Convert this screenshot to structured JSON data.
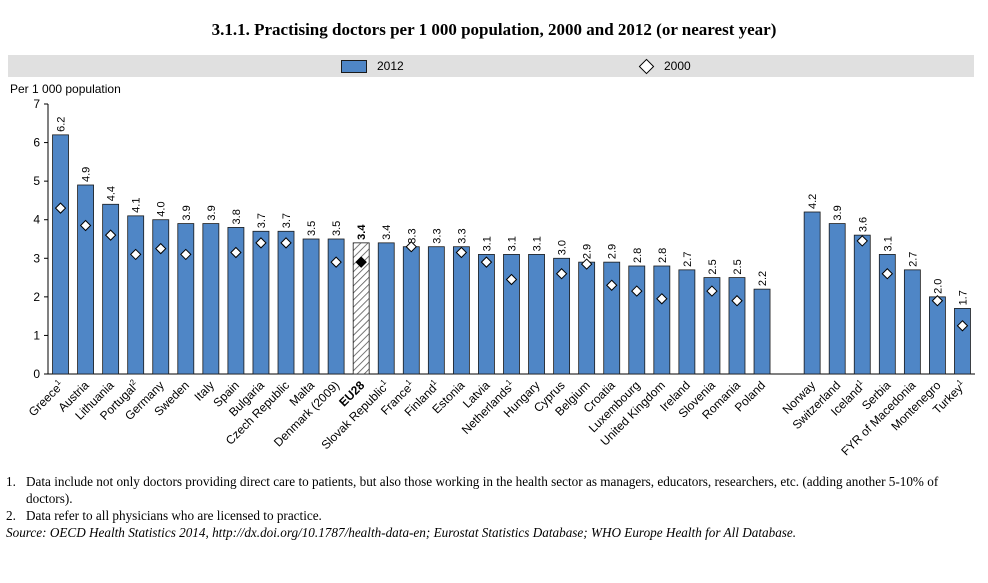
{
  "title": "3.1.1. Practising doctors per 1 000 population, 2000 and 2012 (or nearest year)",
  "legend": {
    "series_2012": "2012",
    "series_2000": "2000"
  },
  "chart_data": {
    "type": "bar",
    "title": "3.1.1. Practising doctors per 1 000 population, 2000 and 2012 (or nearest year)",
    "ylabel": "Per 1 000 population",
    "xlabel": "",
    "ylim": [
      0,
      7
    ],
    "yticks": [
      "0",
      "1",
      "2",
      "3",
      "4",
      "5",
      "6",
      "7"
    ],
    "highlight_category": "EU28",
    "legend_position": "top",
    "categories": [
      {
        "label": "Greece",
        "sup": "1",
        "v2012": 6.2,
        "v2000": 4.3
      },
      {
        "label": "Austria",
        "sup": "",
        "v2012": 4.9,
        "v2000": 3.85
      },
      {
        "label": "Lithuania",
        "sup": "",
        "v2012": 4.4,
        "v2000": 3.6
      },
      {
        "label": "Portugal",
        "sup": "2",
        "v2012": 4.1,
        "v2000": 3.1
      },
      {
        "label": "Germany",
        "sup": "",
        "v2012": 4.0,
        "v2000": 3.25
      },
      {
        "label": "Sweden",
        "sup": "",
        "v2012": 3.9,
        "v2000": 3.1
      },
      {
        "label": "Italy",
        "sup": "",
        "v2012": 3.9,
        "v2000": null
      },
      {
        "label": "Spain",
        "sup": "",
        "v2012": 3.8,
        "v2000": 3.15
      },
      {
        "label": "Bulgaria",
        "sup": "",
        "v2012": 3.7,
        "v2000": 3.4
      },
      {
        "label": "Czech Republic",
        "sup": "",
        "v2012": 3.7,
        "v2000": 3.4
      },
      {
        "label": "Malta",
        "sup": "",
        "v2012": 3.5,
        "v2000": null
      },
      {
        "label": "Denmark (2009)",
        "sup": "",
        "v2012": 3.5,
        "v2000": 2.9
      },
      {
        "label": "EU28",
        "sup": "",
        "v2012": 3.4,
        "v2000": 2.9,
        "highlight": true
      },
      {
        "label": "Slovak Republic",
        "sup": "1",
        "v2012": 3.4,
        "v2000": null
      },
      {
        "label": "France",
        "sup": "1",
        "v2012": 3.3,
        "v2000": 3.3
      },
      {
        "label": "Finland",
        "sup": "1",
        "v2012": 3.3,
        "v2000": null
      },
      {
        "label": "Estonia",
        "sup": "",
        "v2012": 3.3,
        "v2000": 3.15
      },
      {
        "label": "Latvia",
        "sup": "",
        "v2012": 3.1,
        "v2000": 2.9
      },
      {
        "label": "Netherlands",
        "sup": "1",
        "v2012": 3.1,
        "v2000": 2.45
      },
      {
        "label": "Hungary",
        "sup": "",
        "v2012": 3.1,
        "v2000": null
      },
      {
        "label": "Cyprus",
        "sup": "",
        "v2012": 3.0,
        "v2000": 2.6
      },
      {
        "label": "Belgium",
        "sup": "",
        "v2012": 2.9,
        "v2000": 2.85
      },
      {
        "label": "Croatia",
        "sup": "",
        "v2012": 2.9,
        "v2000": 2.3
      },
      {
        "label": "Luxembourg",
        "sup": "",
        "v2012": 2.8,
        "v2000": 2.15
      },
      {
        "label": "United Kingdom",
        "sup": "",
        "v2012": 2.8,
        "v2000": 1.95
      },
      {
        "label": "Ireland",
        "sup": "",
        "v2012": 2.7,
        "v2000": null
      },
      {
        "label": "Slovenia",
        "sup": "",
        "v2012": 2.5,
        "v2000": 2.15
      },
      {
        "label": "Romania",
        "sup": "",
        "v2012": 2.5,
        "v2000": 1.9
      },
      {
        "label": "Poland",
        "sup": "",
        "v2012": 2.2,
        "v2000": null
      },
      {
        "label": "",
        "sup": "",
        "v2012": null,
        "v2000": null,
        "gap": true
      },
      {
        "label": "Norway",
        "sup": "",
        "v2012": 4.2,
        "v2000": null
      },
      {
        "label": "Switzerland",
        "sup": "",
        "v2012": 3.9,
        "v2000": null
      },
      {
        "label": "Iceland",
        "sup": "1",
        "v2012": 3.6,
        "v2000": 3.45
      },
      {
        "label": "Serbia",
        "sup": "",
        "v2012": 3.1,
        "v2000": 2.6
      },
      {
        "label": "FYR of Macedonia",
        "sup": "",
        "v2012": 2.7,
        "v2000": null
      },
      {
        "label": "Montenegro",
        "sup": "",
        "v2012": 2.0,
        "v2000": 1.9
      },
      {
        "label": "Turkey",
        "sup": "1",
        "v2012": 1.7,
        "v2000": 1.25
      }
    ],
    "value_labels": [
      "6.2",
      "4.9",
      "4.4",
      "4.1",
      "4.0",
      "3.9",
      "3.9",
      "3.8",
      "3.7",
      "3.7",
      "3.5",
      "3.5",
      "3.4",
      "3.4",
      "3.3",
      "3.3",
      "3.3",
      "3.1",
      "3.1",
      "3.1",
      "3.0",
      "2.9",
      "2.9",
      "2.8",
      "2.8",
      "2.7",
      "2.5",
      "2.5",
      "2.2",
      "",
      "4.2",
      "3.9",
      "3.6",
      "3.1",
      "2.7",
      "2.0",
      "1.7"
    ]
  },
  "notes": [
    {
      "num": "1.",
      "text": "Data include not only doctors providing direct care to patients, but also those working in the health sector as managers, educators, researchers, etc. (adding another 5-10% of doctors)."
    },
    {
      "num": "2.",
      "text": "Data refer to all physicians who are licensed to practice."
    }
  ],
  "source": "Source:  OECD Health Statistics 2014, http://dx.doi.org/10.1787/health-data-en; Eurostat Statistics Database; WHO Europe Health for All Database.",
  "colors": {
    "bar": "#4f86c6",
    "bar_edge": "#1a1a1a",
    "legend_bg": "#e0e0e0"
  }
}
